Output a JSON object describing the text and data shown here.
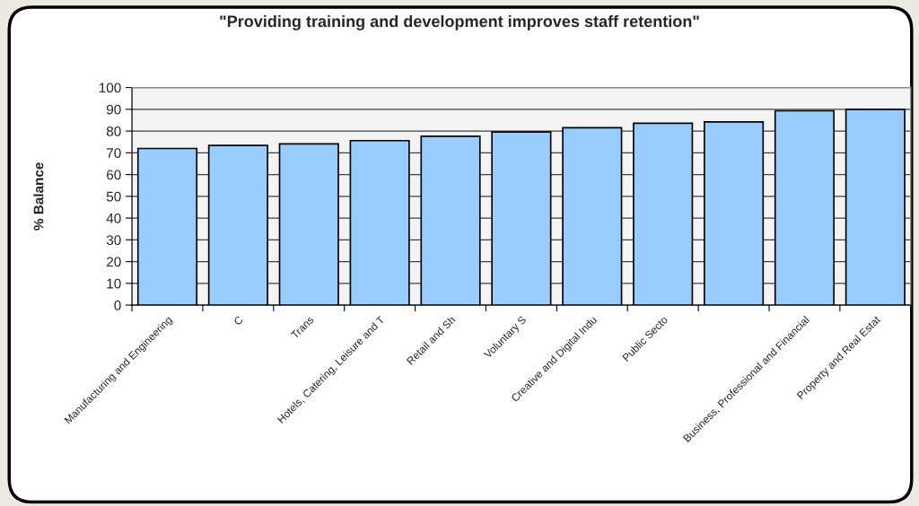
{
  "chart_data": {
    "type": "bar",
    "title": "\"Providing training and development improves staff retention\"",
    "ylabel": "% Balance",
    "categories": [
      "Manufacturing and Engineering",
      "C",
      "Trans",
      "Hotels, Catering, Leisure and T",
      "Retail and Sh",
      "Voluntary S",
      "Creative and Digital Indu",
      "Public Secto",
      null,
      "Business, Professional and Financial",
      "Property and Real Estat"
    ],
    "values": [
      72,
      73.4,
      74.1,
      75.6,
      77.6,
      79.6,
      81.5,
      83.6,
      84.2,
      89.3,
      90
    ],
    "color": "#99ccff",
    "ylim": [
      0,
      100
    ],
    "yticks": [
      0,
      10,
      20,
      30,
      40,
      50,
      60,
      70,
      80,
      90,
      100
    ],
    "grid": "y"
  }
}
